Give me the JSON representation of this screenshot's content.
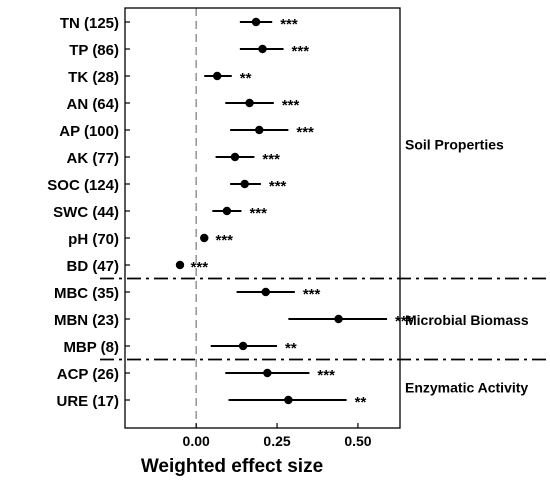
{
  "chart_data": {
    "type": "forest",
    "xlabel": "Weighted effect size",
    "xlim": [
      -0.22,
      0.63
    ],
    "x_ticks": [
      0.0,
      0.25,
      0.5
    ],
    "x_tick_labels": [
      "0.00",
      "0.25",
      "0.50"
    ],
    "reference_line_x": 0.0,
    "rows": [
      {
        "label": "TN (125)",
        "estimate": 0.185,
        "ci_low": 0.135,
        "ci_high": 0.235,
        "sig": "***",
        "group": "Soil Properties"
      },
      {
        "label": "TP (86)",
        "estimate": 0.205,
        "ci_low": 0.135,
        "ci_high": 0.27,
        "sig": "***",
        "group": "Soil Properties"
      },
      {
        "label": "TK (28)",
        "estimate": 0.065,
        "ci_low": 0.025,
        "ci_high": 0.11,
        "sig": "**",
        "group": "Soil Properties"
      },
      {
        "label": "AN (64)",
        "estimate": 0.165,
        "ci_low": 0.09,
        "ci_high": 0.24,
        "sig": "***",
        "group": "Soil Properties"
      },
      {
        "label": "AP (100)",
        "estimate": 0.195,
        "ci_low": 0.105,
        "ci_high": 0.285,
        "sig": "***",
        "group": "Soil Properties"
      },
      {
        "label": "AK (77)",
        "estimate": 0.12,
        "ci_low": 0.06,
        "ci_high": 0.18,
        "sig": "***",
        "group": "Soil Properties"
      },
      {
        "label": "SOC (124)",
        "estimate": 0.15,
        "ci_low": 0.105,
        "ci_high": 0.2,
        "sig": "***",
        "group": "Soil Properties"
      },
      {
        "label": "SWC (44)",
        "estimate": 0.095,
        "ci_low": 0.05,
        "ci_high": 0.14,
        "sig": "***",
        "group": "Soil Properties"
      },
      {
        "label": "pH (70)",
        "estimate": 0.025,
        "ci_low": 0.015,
        "ci_high": 0.035,
        "sig": "***",
        "group": "Soil Properties"
      },
      {
        "label": "BD (47)",
        "estimate": -0.05,
        "ci_low": -0.058,
        "ci_high": -0.042,
        "sig": "***",
        "group": "Soil Properties"
      },
      {
        "label": "MBC (35)",
        "estimate": 0.215,
        "ci_low": 0.125,
        "ci_high": 0.305,
        "sig": "***",
        "group": "Microbial Biomass"
      },
      {
        "label": "MBN (23)",
        "estimate": 0.44,
        "ci_low": 0.285,
        "ci_high": 0.59,
        "sig": "***",
        "group": "Microbial Biomass"
      },
      {
        "label": "MBP (8)",
        "estimate": 0.145,
        "ci_low": 0.045,
        "ci_high": 0.25,
        "sig": "**",
        "group": "Microbial Biomass"
      },
      {
        "label": "ACP (26)",
        "estimate": 0.22,
        "ci_low": 0.09,
        "ci_high": 0.35,
        "sig": "***",
        "group": "Enzymatic Activity"
      },
      {
        "label": "URE (17)",
        "estimate": 0.285,
        "ci_low": 0.1,
        "ci_high": 0.465,
        "sig": "**",
        "group": "Enzymatic Activity"
      }
    ],
    "groups": [
      "Soil Properties",
      "Microbial Biomass",
      "Enzymatic Activity"
    ],
    "group_separators": "dash-dot line between groups",
    "grid": false,
    "legend": "none"
  }
}
